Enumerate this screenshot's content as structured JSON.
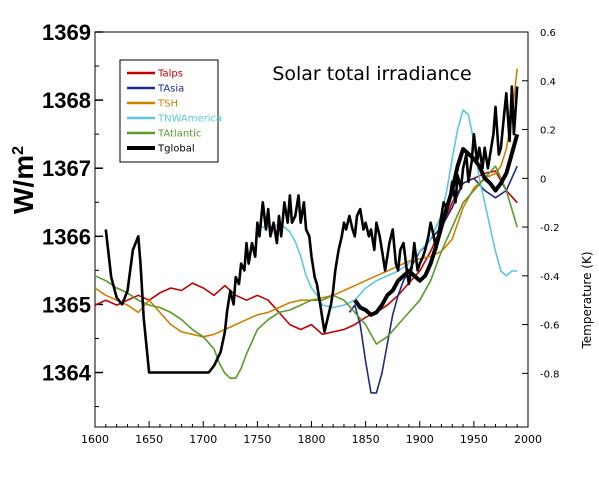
{
  "chart_data": {
    "type": "line",
    "title": "Solar total irradiance",
    "x_axis": {
      "range": [
        1600,
        2000
      ],
      "ticks": [
        "1600",
        "1650",
        "1700",
        "1750",
        "1800",
        "1850",
        "1900",
        "1950",
        "2000"
      ]
    },
    "y_left": {
      "label": "W/m",
      "label_superscript": "2",
      "range": [
        1363.2,
        1369
      ],
      "ticks": [
        "1364",
        "1365",
        "1366",
        "1367",
        "1368",
        "1369"
      ]
    },
    "y_right": {
      "label": "Temperature (K)",
      "range": [
        -1.02,
        0.6
      ],
      "ticks": [
        "0.6",
        "0.4",
        "0.2",
        "0",
        "-0.2",
        "-0.4",
        "-0.6",
        "-0.8"
      ]
    },
    "legend_position": "top-left",
    "grid": false,
    "solar_series": {
      "axis": "left",
      "x": [
        1610,
        1615,
        1620,
        1625,
        1630,
        1635,
        1640,
        1642,
        1645,
        1650,
        1655,
        1660,
        1670,
        1680,
        1690,
        1700,
        1705,
        1710,
        1713,
        1716,
        1720,
        1722,
        1725,
        1728,
        1730,
        1733,
        1735,
        1738,
        1740,
        1742,
        1745,
        1748,
        1750,
        1752,
        1755,
        1758,
        1760,
        1762,
        1765,
        1768,
        1770,
        1772,
        1775,
        1778,
        1780,
        1782,
        1785,
        1788,
        1790,
        1793,
        1795,
        1798,
        1800,
        1803,
        1805,
        1808,
        1810,
        1812,
        1815,
        1818,
        1820,
        1822,
        1825,
        1828,
        1830,
        1832,
        1835,
        1838,
        1840,
        1842,
        1845,
        1848,
        1850,
        1853,
        1855,
        1858,
        1860,
        1863,
        1865,
        1868,
        1870,
        1872,
        1875,
        1878,
        1880,
        1882,
        1885,
        1888,
        1890,
        1893,
        1895,
        1898,
        1900,
        1903,
        1905,
        1908,
        1910,
        1913,
        1915,
        1918,
        1920,
        1922,
        1925,
        1928,
        1930,
        1933,
        1935,
        1938,
        1940,
        1943,
        1945,
        1948,
        1950,
        1953,
        1955,
        1958,
        1960,
        1963,
        1965,
        1968,
        1970,
        1973,
        1975,
        1978,
        1980,
        1983,
        1985,
        1987,
        1990
      ],
      "values": [
        1366.1,
        1365.4,
        1365.1,
        1365.0,
        1365.2,
        1365.8,
        1366.0,
        1365.6,
        1364.8,
        1364.0,
        1364.0,
        1364.0,
        1364.0,
        1364.0,
        1364.0,
        1364.0,
        1364.0,
        1364.1,
        1364.2,
        1364.3,
        1364.6,
        1364.9,
        1365.2,
        1365.0,
        1365.4,
        1365.3,
        1365.6,
        1365.5,
        1365.9,
        1365.6,
        1365.9,
        1365.7,
        1366.2,
        1366.0,
        1366.5,
        1366.1,
        1366.4,
        1366.0,
        1366.2,
        1365.9,
        1366.3,
        1366.0,
        1366.5,
        1366.2,
        1366.6,
        1366.2,
        1366.3,
        1366.6,
        1366.2,
        1366.5,
        1366.1,
        1366.0,
        1365.7,
        1365.4,
        1365.3,
        1365.0,
        1364.8,
        1364.6,
        1364.8,
        1365.0,
        1365.2,
        1365.5,
        1365.8,
        1366.0,
        1366.2,
        1366.1,
        1366.3,
        1366.1,
        1366.0,
        1366.3,
        1366.4,
        1366.1,
        1366.2,
        1366.0,
        1366.1,
        1365.8,
        1366.2,
        1366.0,
        1365.8,
        1365.5,
        1365.7,
        1365.9,
        1366.1,
        1365.6,
        1365.5,
        1365.8,
        1365.9,
        1365.5,
        1365.3,
        1365.6,
        1365.9,
        1365.5,
        1365.6,
        1365.7,
        1365.8,
        1366.0,
        1366.2,
        1366.0,
        1365.8,
        1366.1,
        1366.3,
        1366.5,
        1366.4,
        1366.6,
        1366.8,
        1366.5,
        1366.9,
        1366.7,
        1367.0,
        1367.2,
        1366.8,
        1367.1,
        1367.5,
        1367.1,
        1367.3,
        1367.0,
        1367.3,
        1367.0,
        1367.2,
        1367.5,
        1367.9,
        1367.2,
        1367.3,
        1367.8,
        1368.1,
        1367.4,
        1368.2,
        1367.5,
        1368.2
      ]
    },
    "series": [
      {
        "name": "Talps",
        "color": "#c00000",
        "axis": "right",
        "x": [
          1600,
          1610,
          1620,
          1630,
          1640,
          1650,
          1660,
          1670,
          1680,
          1690,
          1700,
          1710,
          1720,
          1730,
          1740,
          1750,
          1760,
          1770,
          1780,
          1790,
          1800,
          1810,
          1820,
          1830,
          1840,
          1850,
          1860,
          1870,
          1880,
          1890,
          1900,
          1910,
          1920,
          1930,
          1940,
          1950,
          1960,
          1970,
          1980,
          1990
        ],
        "values": [
          -0.52,
          -0.5,
          -0.52,
          -0.5,
          -0.48,
          -0.5,
          -0.47,
          -0.45,
          -0.46,
          -0.43,
          -0.45,
          -0.48,
          -0.44,
          -0.48,
          -0.5,
          -0.48,
          -0.5,
          -0.55,
          -0.6,
          -0.62,
          -0.6,
          -0.64,
          -0.63,
          -0.62,
          -0.6,
          -0.57,
          -0.55,
          -0.52,
          -0.48,
          -0.43,
          -0.38,
          -0.3,
          -0.2,
          -0.1,
          -0.02,
          0.0,
          0.02,
          0.03,
          -0.05,
          -0.1
        ]
      },
      {
        "name": "TAsia",
        "color": "#1a2a8a",
        "axis": "right",
        "x": [
          1835,
          1840,
          1845,
          1850,
          1855,
          1860,
          1865,
          1870,
          1875,
          1880,
          1885,
          1890,
          1895,
          1900,
          1905,
          1910,
          1920,
          1930,
          1940,
          1950,
          1960,
          1970,
          1980,
          1990
        ],
        "values": [
          -0.55,
          -0.52,
          -0.6,
          -0.75,
          -0.88,
          -0.88,
          -0.8,
          -0.68,
          -0.56,
          -0.48,
          -0.42,
          -0.38,
          -0.34,
          -0.3,
          -0.28,
          -0.25,
          -0.2,
          -0.12,
          -0.02,
          0.0,
          -0.05,
          -0.08,
          -0.05,
          0.05
        ]
      },
      {
        "name": "TSH",
        "color": "#d08000",
        "axis": "right",
        "x": [
          1600,
          1610,
          1620,
          1630,
          1640,
          1650,
          1660,
          1670,
          1680,
          1690,
          1700,
          1710,
          1720,
          1730,
          1740,
          1750,
          1760,
          1770,
          1780,
          1790,
          1800,
          1810,
          1820,
          1830,
          1840,
          1850,
          1860,
          1870,
          1880,
          1890,
          1900,
          1910,
          1920,
          1930,
          1940,
          1950,
          1960,
          1970,
          1975,
          1980,
          1985,
          1990
        ],
        "values": [
          -0.45,
          -0.48,
          -0.5,
          -0.52,
          -0.55,
          -0.5,
          -0.55,
          -0.6,
          -0.63,
          -0.64,
          -0.65,
          -0.64,
          -0.62,
          -0.6,
          -0.58,
          -0.56,
          -0.55,
          -0.53,
          -0.51,
          -0.5,
          -0.5,
          -0.49,
          -0.48,
          -0.46,
          -0.44,
          -0.42,
          -0.4,
          -0.38,
          -0.36,
          -0.34,
          -0.33,
          -0.32,
          -0.3,
          -0.25,
          -0.12,
          -0.04,
          0.0,
          0.02,
          0.05,
          0.12,
          0.25,
          0.45
        ]
      },
      {
        "name": "TNWAmerica",
        "color": "#5ac8e0",
        "axis": "right",
        "x": [
          1750,
          1760,
          1770,
          1775,
          1780,
          1785,
          1790,
          1795,
          1800,
          1805,
          1810,
          1820,
          1830,
          1840,
          1850,
          1860,
          1870,
          1880,
          1890,
          1900,
          1910,
          1920,
          1925,
          1930,
          1935,
          1940,
          1945,
          1950,
          1955,
          1960,
          1965,
          1970,
          1975,
          1980,
          1985,
          1990
        ],
        "values": [
          -0.2,
          -0.2,
          -0.19,
          -0.2,
          -0.22,
          -0.26,
          -0.32,
          -0.4,
          -0.45,
          -0.48,
          -0.52,
          -0.53,
          -0.52,
          -0.5,
          -0.45,
          -0.42,
          -0.4,
          -0.38,
          -0.35,
          -0.3,
          -0.25,
          -0.15,
          -0.05,
          0.08,
          0.2,
          0.28,
          0.26,
          0.15,
          0.0,
          -0.1,
          -0.2,
          -0.3,
          -0.38,
          -0.4,
          -0.38,
          -0.38
        ]
      },
      {
        "name": "TAtlantic",
        "color": "#5a9a2a",
        "axis": "right",
        "x": [
          1600,
          1610,
          1620,
          1630,
          1640,
          1650,
          1660,
          1670,
          1680,
          1690,
          1700,
          1710,
          1715,
          1720,
          1725,
          1730,
          1735,
          1740,
          1750,
          1760,
          1770,
          1780,
          1790,
          1800,
          1810,
          1820,
          1830,
          1840,
          1850,
          1860,
          1870,
          1880,
          1890,
          1900,
          1910,
          1920,
          1930,
          1940,
          1950,
          1960,
          1970,
          1980,
          1990
        ],
        "values": [
          -0.4,
          -0.42,
          -0.45,
          -0.47,
          -0.5,
          -0.52,
          -0.53,
          -0.55,
          -0.58,
          -0.62,
          -0.65,
          -0.7,
          -0.76,
          -0.8,
          -0.82,
          -0.82,
          -0.78,
          -0.72,
          -0.62,
          -0.58,
          -0.55,
          -0.54,
          -0.52,
          -0.5,
          -0.5,
          -0.48,
          -0.5,
          -0.55,
          -0.6,
          -0.68,
          -0.65,
          -0.6,
          -0.55,
          -0.5,
          -0.42,
          -0.3,
          -0.2,
          -0.1,
          -0.05,
          0.0,
          0.05,
          -0.05,
          -0.2
        ]
      },
      {
        "name": "Tglobal",
        "color": "#000000",
        "axis": "right",
        "x": [
          1840,
          1845,
          1850,
          1855,
          1860,
          1865,
          1870,
          1875,
          1880,
          1885,
          1890,
          1895,
          1900,
          1905,
          1910,
          1915,
          1920,
          1925,
          1930,
          1935,
          1940,
          1945,
          1950,
          1955,
          1960,
          1965,
          1970,
          1975,
          1980,
          1985,
          1990
        ],
        "values": [
          -0.5,
          -0.53,
          -0.54,
          -0.56,
          -0.55,
          -0.52,
          -0.48,
          -0.46,
          -0.42,
          -0.4,
          -0.38,
          -0.4,
          -0.42,
          -0.4,
          -0.35,
          -0.28,
          -0.2,
          -0.12,
          -0.05,
          0.05,
          0.12,
          0.1,
          0.08,
          0.05,
          0.0,
          -0.02,
          -0.05,
          -0.02,
          0.02,
          0.1,
          0.18
        ]
      }
    ]
  }
}
